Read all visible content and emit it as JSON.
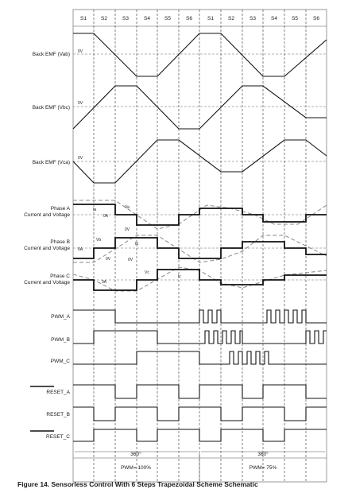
{
  "steps": [
    "S1",
    "S2",
    "S3",
    "S4",
    "S5",
    "S6",
    "S1",
    "S2",
    "S3",
    "S4",
    "S5",
    "S6"
  ],
  "bemf": {
    "ab_label": "Back EMF (Vab)",
    "bc_label": "Back EMF (Vbc)",
    "ca_label": "Back EMF (Vca)",
    "zero_label": "0V"
  },
  "phases": {
    "a_label_1": "Phase A",
    "b_label_1": "Phase B",
    "c_label_1": "Phase C",
    "label_2": "Current and Voltage",
    "ia": "Ia",
    "ib": "Ib",
    "ic": "Ic",
    "va": "Va",
    "vb": "Vb",
    "vc": "Vc",
    "zero": "0A",
    "zero_v": "0V"
  },
  "pwm": {
    "a": "PWM_A",
    "b": "PWM_B",
    "c": "PWM_C"
  },
  "reset": {
    "a": "RESET_A",
    "b": "RESET_B",
    "c": "RESET_C"
  },
  "cycle": {
    "left_angle": "360°",
    "right_angle": "360°",
    "left_duty": "PWM= 100%",
    "right_duty": "PWM= 75%"
  },
  "caption": "Figure 14.  Sensorless Control With 6 Steps Trapezoidal Scheme Schematic"
}
